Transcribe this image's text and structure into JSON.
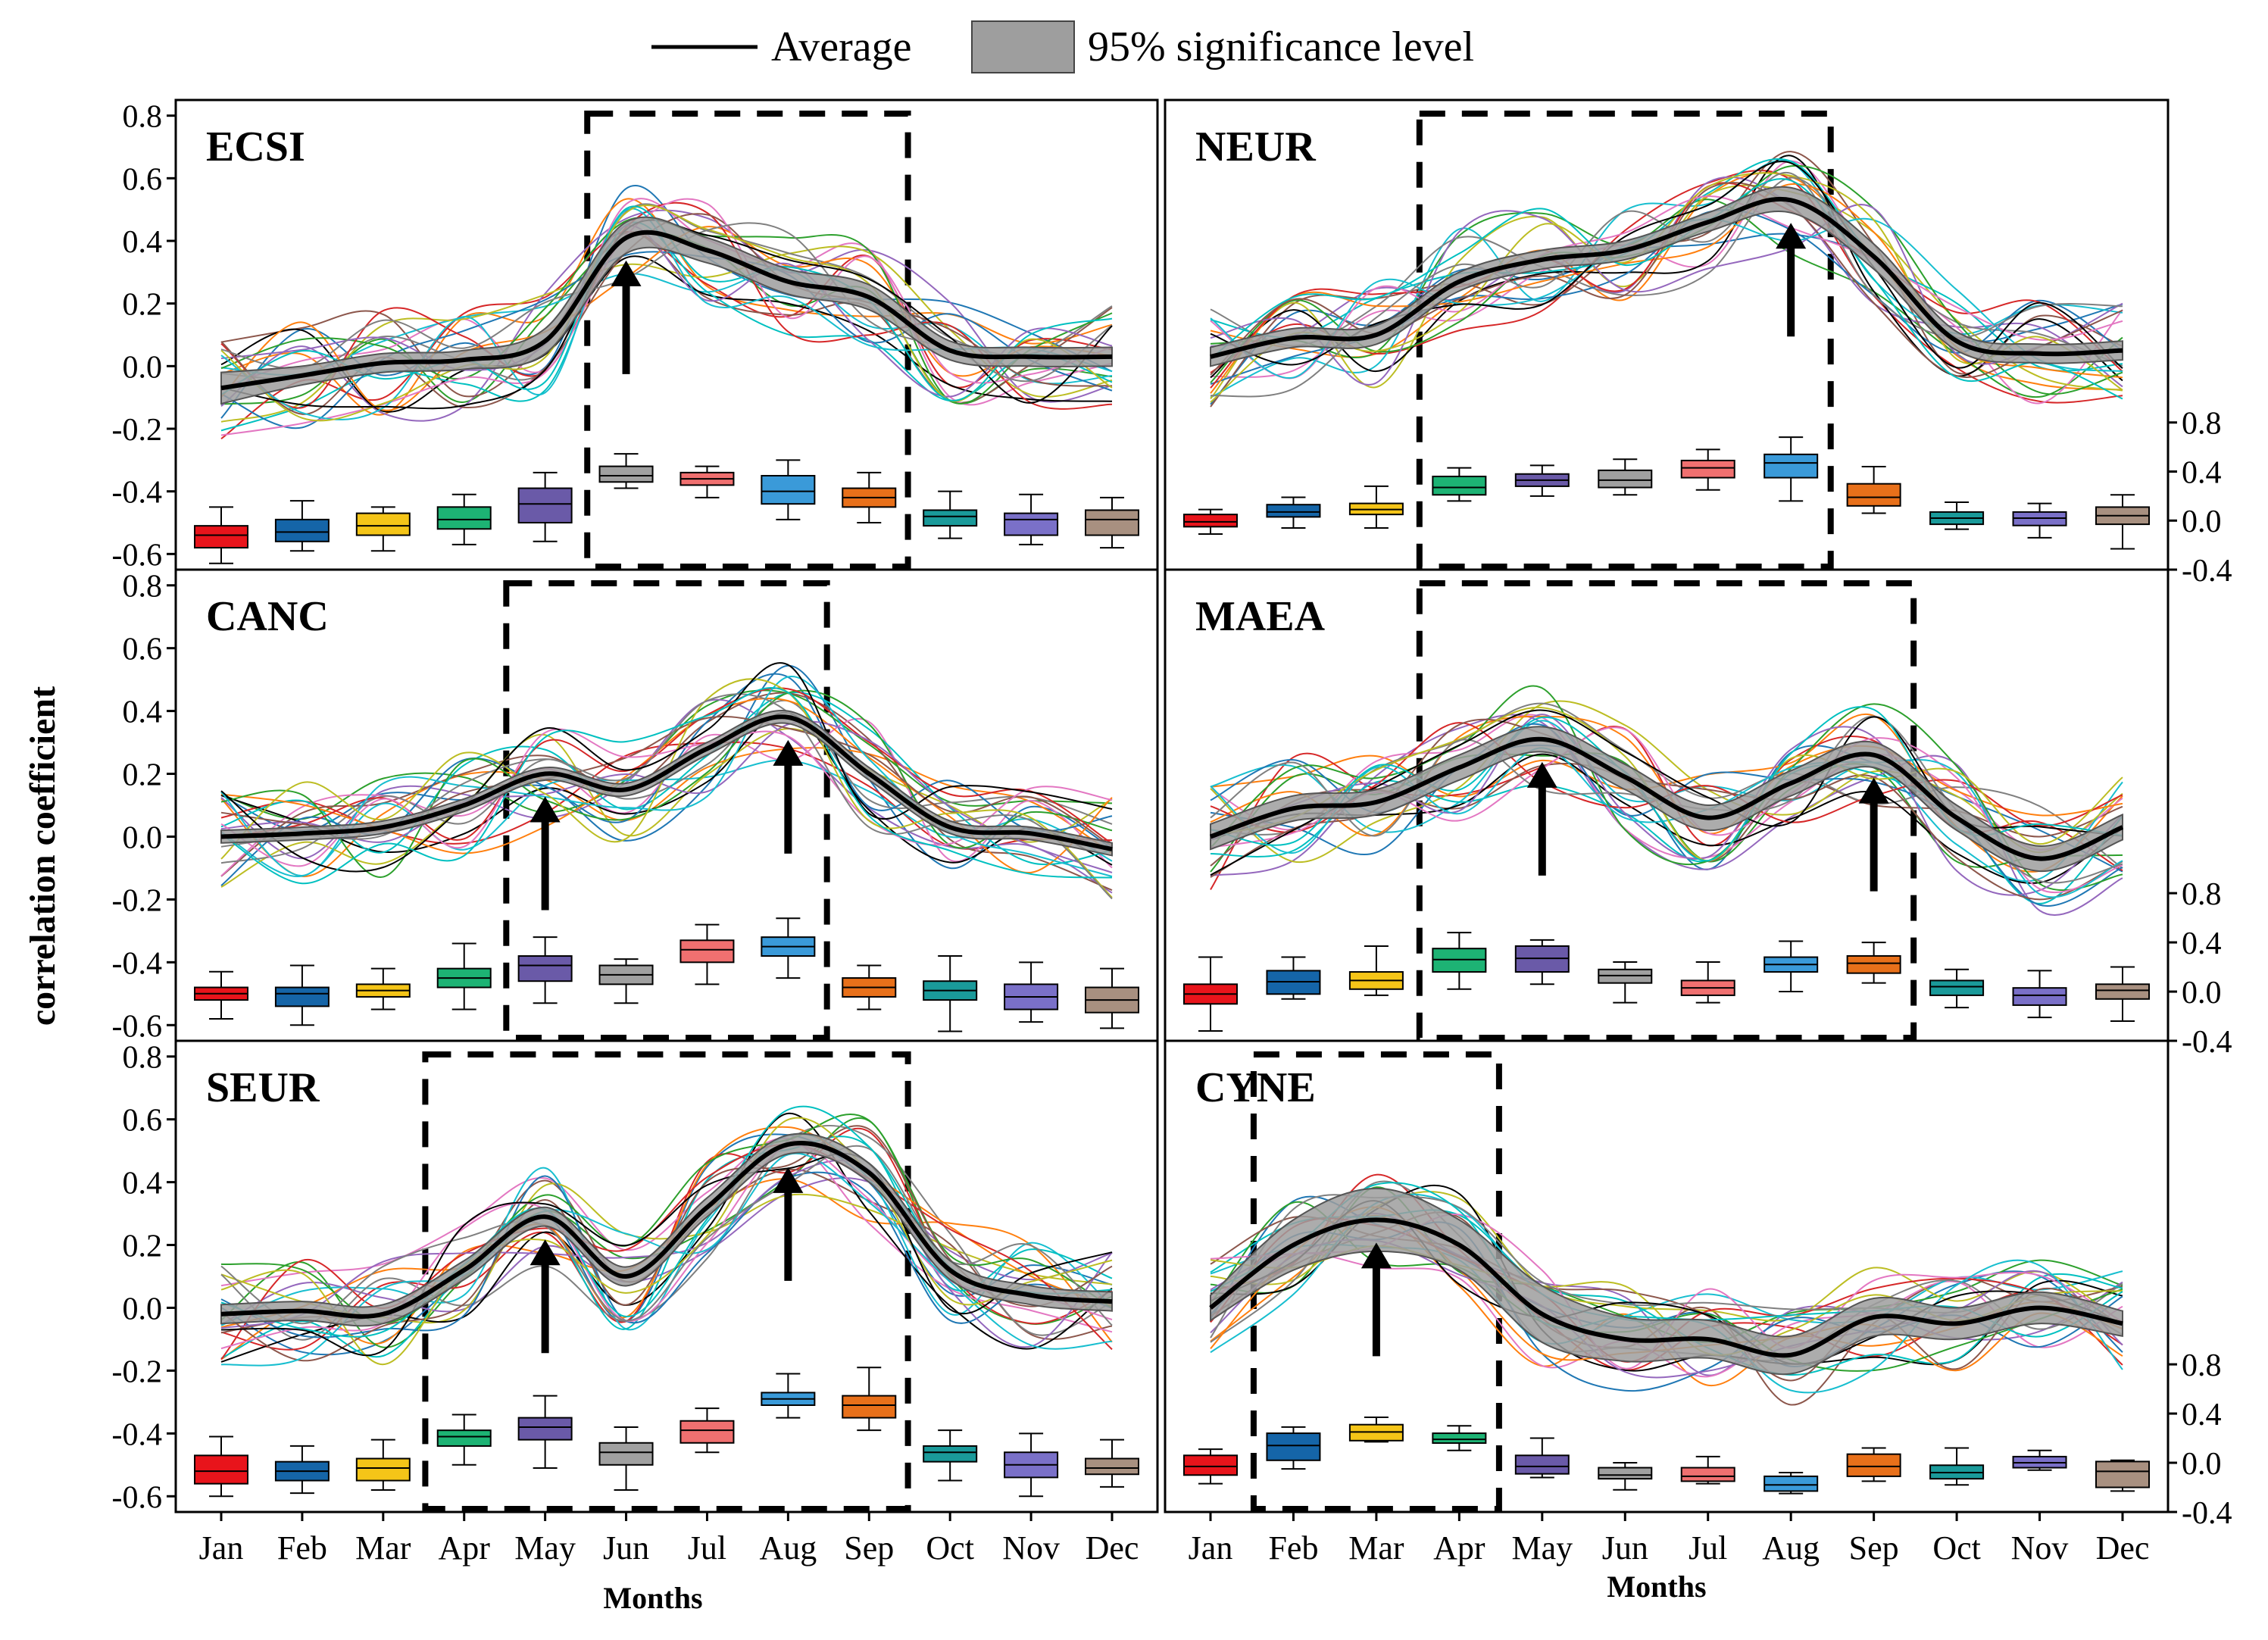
{
  "legend": {
    "average_label": "Average",
    "band_label": "95% significance level",
    "band_color": "#9e9e9e",
    "average_color": "#000000"
  },
  "y_axis_label": "correlation coefficient",
  "x_axis_label": "Months",
  "months": [
    "Jan",
    "Feb",
    "Mar",
    "Apr",
    "May",
    "Jun",
    "Jul",
    "Aug",
    "Sep",
    "Oct",
    "Nov",
    "Dec"
  ],
  "box_colors": [
    "#e8141b",
    "#1565a8",
    "#f5c518",
    "#1db374",
    "#6a5aa8",
    "#a0a0a0",
    "#f07070",
    "#3a9ad9",
    "#e8701a",
    "#1a9a9a",
    "#7a70c8",
    "#a89080"
  ],
  "thin_line_colors": [
    "#1f77b4",
    "#ff7f0e",
    "#2ca02c",
    "#d62728",
    "#9467bd",
    "#8c564b",
    "#e377c2",
    "#17becf",
    "#bcbd22",
    "#7f7f7f",
    "#000000",
    "#00c0c0"
  ],
  "chart_data": [
    {
      "type": "line",
      "region": "ECSI",
      "title": "ECSI",
      "ylim": [
        -0.6,
        0.8
      ],
      "yticks": [
        "0.8",
        "0.6",
        "0.4",
        "0.2",
        "0.0",
        "-0.2",
        "-0.4",
        "-0.6"
      ],
      "y2ticks": [],
      "average": [
        -0.07,
        -0.03,
        0.01,
        0.02,
        0.08,
        0.41,
        0.37,
        0.27,
        0.22,
        0.05,
        0.03,
        0.03
      ],
      "band_halfwidth": [
        0.05,
        0.03,
        0.03,
        0.03,
        0.04,
        0.05,
        0.04,
        0.04,
        0.04,
        0.03,
        0.03,
        0.03
      ],
      "highlight_months": [
        "Jun",
        "Sep"
      ],
      "arrows_at": [
        "Jun"
      ],
      "boxes": [
        {
          "month": "Jan",
          "q1": -0.58,
          "median": -0.54,
          "q3": -0.51,
          "min": -0.63,
          "max": -0.45
        },
        {
          "month": "Feb",
          "q1": -0.56,
          "median": -0.53,
          "q3": -0.49,
          "min": -0.59,
          "max": -0.43
        },
        {
          "month": "Mar",
          "q1": -0.54,
          "median": -0.51,
          "q3": -0.47,
          "min": -0.59,
          "max": -0.45
        },
        {
          "month": "Apr",
          "q1": -0.52,
          "median": -0.49,
          "q3": -0.45,
          "min": -0.57,
          "max": -0.41
        },
        {
          "month": "May",
          "q1": -0.5,
          "median": -0.44,
          "q3": -0.39,
          "min": -0.56,
          "max": -0.34
        },
        {
          "month": "Jun",
          "q1": -0.37,
          "median": -0.35,
          "q3": -0.32,
          "min": -0.39,
          "max": -0.28
        },
        {
          "month": "Jul",
          "q1": -0.38,
          "median": -0.36,
          "q3": -0.34,
          "min": -0.42,
          "max": -0.32
        },
        {
          "month": "Aug",
          "q1": -0.44,
          "median": -0.4,
          "q3": -0.35,
          "min": -0.49,
          "max": -0.3
        },
        {
          "month": "Sep",
          "q1": -0.45,
          "median": -0.42,
          "q3": -0.39,
          "min": -0.5,
          "max": -0.34
        },
        {
          "month": "Oct",
          "q1": -0.51,
          "median": -0.48,
          "q3": -0.46,
          "min": -0.55,
          "max": -0.4
        },
        {
          "month": "Nov",
          "q1": -0.54,
          "median": -0.49,
          "q3": -0.47,
          "min": -0.57,
          "max": -0.41
        },
        {
          "month": "Dec",
          "q1": -0.54,
          "median": -0.49,
          "q3": -0.46,
          "min": -0.58,
          "max": -0.42
        }
      ]
    },
    {
      "type": "line",
      "region": "NEUR",
      "title": "NEUR",
      "ylim": [
        -0.6,
        0.8
      ],
      "yticks": [],
      "y2ticks": [
        "0.8",
        "0.4",
        "0.0",
        "-0.4"
      ],
      "average": [
        0.03,
        0.09,
        0.1,
        0.27,
        0.34,
        0.37,
        0.46,
        0.53,
        0.35,
        0.08,
        0.04,
        0.05
      ],
      "band_halfwidth": [
        0.03,
        0.03,
        0.03,
        0.03,
        0.03,
        0.03,
        0.03,
        0.04,
        0.04,
        0.03,
        0.03,
        0.03
      ],
      "highlight_months": [
        "Apr",
        "Aug"
      ],
      "arrows_at": [
        "Aug"
      ],
      "boxes": [
        {
          "month": "Jan",
          "q1": -0.05,
          "median": -0.01,
          "q3": 0.05,
          "min": -0.11,
          "max": 0.09
        },
        {
          "month": "Feb",
          "q1": 0.03,
          "median": 0.07,
          "q3": 0.13,
          "min": -0.06,
          "max": 0.19
        },
        {
          "month": "Mar",
          "q1": 0.05,
          "median": 0.09,
          "q3": 0.14,
          "min": -0.06,
          "max": 0.28
        },
        {
          "month": "Apr",
          "q1": 0.21,
          "median": 0.27,
          "q3": 0.36,
          "min": 0.16,
          "max": 0.43
        },
        {
          "month": "May",
          "q1": 0.28,
          "median": 0.33,
          "q3": 0.38,
          "min": 0.2,
          "max": 0.45
        },
        {
          "month": "Jun",
          "q1": 0.27,
          "median": 0.33,
          "q3": 0.41,
          "min": 0.21,
          "max": 0.5
        },
        {
          "month": "Jul",
          "q1": 0.35,
          "median": 0.43,
          "q3": 0.49,
          "min": 0.25,
          "max": 0.58
        },
        {
          "month": "Aug",
          "q1": 0.35,
          "median": 0.47,
          "q3": 0.54,
          "min": 0.16,
          "max": 0.68
        },
        {
          "month": "Sep",
          "q1": 0.12,
          "median": 0.19,
          "q3": 0.3,
          "min": 0.06,
          "max": 0.44
        },
        {
          "month": "Oct",
          "q1": -0.03,
          "median": 0.02,
          "q3": 0.07,
          "min": -0.07,
          "max": 0.15
        },
        {
          "month": "Nov",
          "q1": -0.04,
          "median": 0.02,
          "q3": 0.07,
          "min": -0.14,
          "max": 0.14
        },
        {
          "month": "Dec",
          "q1": -0.03,
          "median": 0.04,
          "q3": 0.11,
          "min": -0.23,
          "max": 0.21
        }
      ]
    },
    {
      "type": "line",
      "region": "CANC",
      "title": "CANC",
      "ylim": [
        -0.6,
        0.8
      ],
      "yticks": [
        "0.8",
        "0.6",
        "0.4",
        "0.2",
        "0.0",
        "-0.2",
        "-0.4",
        "-0.6"
      ],
      "y2ticks": [],
      "average": [
        0.0,
        0.01,
        0.03,
        0.1,
        0.2,
        0.15,
        0.28,
        0.38,
        0.2,
        0.03,
        0.01,
        -0.04
      ],
      "band_halfwidth": [
        0.02,
        0.02,
        0.02,
        0.02,
        0.02,
        0.02,
        0.02,
        0.02,
        0.02,
        0.02,
        0.02,
        0.02
      ],
      "highlight_months": [
        "May",
        "Aug"
      ],
      "arrows_at": [
        "May",
        "Aug"
      ],
      "boxes": [
        {
          "month": "Jan",
          "q1": -0.52,
          "median": -0.5,
          "q3": -0.48,
          "min": -0.58,
          "max": -0.43
        },
        {
          "month": "Feb",
          "q1": -0.54,
          "median": -0.5,
          "q3": -0.48,
          "min": -0.6,
          "max": -0.41
        },
        {
          "month": "Mar",
          "q1": -0.51,
          "median": -0.49,
          "q3": -0.47,
          "min": -0.55,
          "max": -0.42
        },
        {
          "month": "Apr",
          "q1": -0.48,
          "median": -0.45,
          "q3": -0.42,
          "min": -0.55,
          "max": -0.34
        },
        {
          "month": "May",
          "q1": -0.46,
          "median": -0.41,
          "q3": -0.38,
          "min": -0.53,
          "max": -0.32
        },
        {
          "month": "Jun",
          "q1": -0.47,
          "median": -0.44,
          "q3": -0.41,
          "min": -0.53,
          "max": -0.39
        },
        {
          "month": "Jul",
          "q1": -0.4,
          "median": -0.36,
          "q3": -0.33,
          "min": -0.47,
          "max": -0.28
        },
        {
          "month": "Aug",
          "q1": -0.38,
          "median": -0.35,
          "q3": -0.32,
          "min": -0.45,
          "max": -0.26
        },
        {
          "month": "Sep",
          "q1": -0.51,
          "median": -0.48,
          "q3": -0.45,
          "min": -0.55,
          "max": -0.41
        },
        {
          "month": "Oct",
          "q1": -0.52,
          "median": -0.49,
          "q3": -0.46,
          "min": -0.62,
          "max": -0.38
        },
        {
          "month": "Nov",
          "q1": -0.55,
          "median": -0.51,
          "q3": -0.47,
          "min": -0.59,
          "max": -0.4
        },
        {
          "month": "Dec",
          "q1": -0.56,
          "median": -0.52,
          "q3": -0.48,
          "min": -0.61,
          "max": -0.42
        }
      ]
    },
    {
      "type": "line",
      "region": "MAEA",
      "title": "MAEA",
      "ylim": [
        -0.6,
        0.8
      ],
      "yticks": [],
      "y2ticks": [
        "0.8",
        "0.4",
        "0.0",
        "-0.4"
      ],
      "average": [
        0.0,
        0.09,
        0.11,
        0.22,
        0.31,
        0.19,
        0.06,
        0.17,
        0.26,
        0.06,
        -0.07,
        0.03
      ],
      "band_halfwidth": [
        0.04,
        0.04,
        0.04,
        0.04,
        0.04,
        0.04,
        0.04,
        0.04,
        0.04,
        0.04,
        0.04,
        0.04
      ],
      "highlight_months": [
        "Apr",
        "Sep"
      ],
      "arrows_at": [
        "May",
        "Sep"
      ],
      "boxes": [
        {
          "month": "Jan",
          "q1": -0.1,
          "median": -0.02,
          "q3": 0.06,
          "min": -0.32,
          "max": 0.28
        },
        {
          "month": "Feb",
          "q1": -0.02,
          "median": 0.08,
          "q3": 0.17,
          "min": -0.06,
          "max": 0.28
        },
        {
          "month": "Mar",
          "q1": 0.02,
          "median": 0.09,
          "q3": 0.16,
          "min": -0.03,
          "max": 0.37
        },
        {
          "month": "Apr",
          "q1": 0.16,
          "median": 0.26,
          "q3": 0.35,
          "min": 0.02,
          "max": 0.48
        },
        {
          "month": "May",
          "q1": 0.16,
          "median": 0.27,
          "q3": 0.37,
          "min": 0.06,
          "max": 0.42
        },
        {
          "month": "Jun",
          "q1": 0.07,
          "median": 0.13,
          "q3": 0.18,
          "min": -0.09,
          "max": 0.24
        },
        {
          "month": "Jul",
          "q1": -0.03,
          "median": 0.03,
          "q3": 0.09,
          "min": -0.09,
          "max": 0.24
        },
        {
          "month": "Aug",
          "q1": 0.16,
          "median": 0.22,
          "q3": 0.28,
          "min": 0.0,
          "max": 0.41
        },
        {
          "month": "Sep",
          "q1": 0.15,
          "median": 0.23,
          "q3": 0.29,
          "min": 0.07,
          "max": 0.4
        },
        {
          "month": "Oct",
          "q1": -0.03,
          "median": 0.04,
          "q3": 0.09,
          "min": -0.13,
          "max": 0.18
        },
        {
          "month": "Nov",
          "q1": -0.11,
          "median": -0.03,
          "q3": 0.03,
          "min": -0.21,
          "max": 0.17
        },
        {
          "month": "Dec",
          "q1": -0.06,
          "median": 0.01,
          "q3": 0.06,
          "min": -0.24,
          "max": 0.2
        }
      ]
    },
    {
      "type": "line",
      "region": "SEUR",
      "title": "SEUR",
      "ylim": [
        -0.6,
        0.8
      ],
      "yticks": [
        "0.8",
        "0.6",
        "0.4",
        "0.2",
        "0.0",
        "-0.2",
        "-0.4",
        "-0.6"
      ],
      "y2ticks": [],
      "average": [
        -0.02,
        -0.01,
        -0.02,
        0.12,
        0.29,
        0.1,
        0.32,
        0.52,
        0.43,
        0.12,
        0.04,
        0.02
      ],
      "band_halfwidth": [
        0.03,
        0.03,
        0.03,
        0.03,
        0.03,
        0.03,
        0.03,
        0.03,
        0.03,
        0.03,
        0.03,
        0.03
      ],
      "highlight_months": [
        "Apr",
        "Sep"
      ],
      "arrows_at": [
        "May",
        "Aug"
      ],
      "boxes": [
        {
          "month": "Jan",
          "q1": -0.56,
          "median": -0.52,
          "q3": -0.47,
          "min": -0.6,
          "max": -0.41
        },
        {
          "month": "Feb",
          "q1": -0.55,
          "median": -0.52,
          "q3": -0.49,
          "min": -0.59,
          "max": -0.44
        },
        {
          "month": "Mar",
          "q1": -0.55,
          "median": -0.51,
          "q3": -0.48,
          "min": -0.58,
          "max": -0.42
        },
        {
          "month": "Apr",
          "q1": -0.44,
          "median": -0.41,
          "q3": -0.39,
          "min": -0.5,
          "max": -0.34
        },
        {
          "month": "May",
          "q1": -0.42,
          "median": -0.38,
          "q3": -0.35,
          "min": -0.51,
          "max": -0.28
        },
        {
          "month": "Jun",
          "q1": -0.5,
          "median": -0.46,
          "q3": -0.43,
          "min": -0.58,
          "max": -0.38
        },
        {
          "month": "Jul",
          "q1": -0.43,
          "median": -0.39,
          "q3": -0.36,
          "min": -0.46,
          "max": -0.32
        },
        {
          "month": "Aug",
          "q1": -0.31,
          "median": -0.29,
          "q3": -0.27,
          "min": -0.35,
          "max": -0.21
        },
        {
          "month": "Sep",
          "q1": -0.35,
          "median": -0.31,
          "q3": -0.28,
          "min": -0.39,
          "max": -0.19
        },
        {
          "month": "Oct",
          "q1": -0.49,
          "median": -0.46,
          "q3": -0.44,
          "min": -0.55,
          "max": -0.39
        },
        {
          "month": "Nov",
          "q1": -0.54,
          "median": -0.5,
          "q3": -0.46,
          "min": -0.6,
          "max": -0.4
        },
        {
          "month": "Dec",
          "q1": -0.53,
          "median": -0.51,
          "q3": -0.48,
          "min": -0.57,
          "max": -0.42
        }
      ]
    },
    {
      "type": "line",
      "region": "CYNE",
      "title": "CYNE",
      "ylim": [
        -0.6,
        0.8
      ],
      "yticks": [],
      "y2ticks": [
        "0.8",
        "0.4",
        "0.0",
        "-0.4"
      ],
      "average": [
        0.0,
        0.2,
        0.28,
        0.2,
        -0.02,
        -0.1,
        -0.1,
        -0.15,
        -0.03,
        -0.05,
        0.0,
        -0.05
      ],
      "band_halfwidth": [
        0.04,
        0.08,
        0.1,
        0.08,
        0.09,
        0.07,
        0.06,
        0.06,
        0.06,
        0.05,
        0.05,
        0.04
      ],
      "highlight_months": [
        "Feb",
        "Apr"
      ],
      "arrows_at": [
        "Mar"
      ],
      "boxes": [
        {
          "month": "Jan",
          "q1": -0.1,
          "median": -0.03,
          "q3": 0.06,
          "min": -0.17,
          "max": 0.11
        },
        {
          "month": "Feb",
          "q1": 0.02,
          "median": 0.14,
          "q3": 0.24,
          "min": -0.05,
          "max": 0.29
        },
        {
          "month": "Mar",
          "q1": 0.18,
          "median": 0.25,
          "q3": 0.31,
          "min": 0.17,
          "max": 0.37
        },
        {
          "month": "Apr",
          "q1": 0.16,
          "median": 0.19,
          "q3": 0.24,
          "min": 0.1,
          "max": 0.3
        },
        {
          "month": "May",
          "q1": -0.09,
          "median": -0.03,
          "q3": 0.06,
          "min": -0.12,
          "max": 0.2
        },
        {
          "month": "Jun",
          "q1": -0.13,
          "median": -0.1,
          "q3": -0.04,
          "min": -0.22,
          "max": 0.0
        },
        {
          "month": "Jul",
          "q1": -0.15,
          "median": -0.11,
          "q3": -0.04,
          "min": -0.17,
          "max": 0.05
        },
        {
          "month": "Aug",
          "q1": -0.23,
          "median": -0.18,
          "q3": -0.11,
          "min": -0.25,
          "max": -0.08
        },
        {
          "month": "Sep",
          "q1": -0.11,
          "median": -0.03,
          "q3": 0.07,
          "min": -0.15,
          "max": 0.12
        },
        {
          "month": "Oct",
          "q1": -0.13,
          "median": -0.08,
          "q3": -0.02,
          "min": -0.18,
          "max": 0.12
        },
        {
          "month": "Nov",
          "q1": -0.04,
          "median": 0.0,
          "q3": 0.05,
          "min": -0.06,
          "max": 0.1
        },
        {
          "month": "Dec",
          "q1": -0.2,
          "median": -0.07,
          "q3": 0.01,
          "min": -0.23,
          "max": 0.02
        }
      ]
    }
  ]
}
